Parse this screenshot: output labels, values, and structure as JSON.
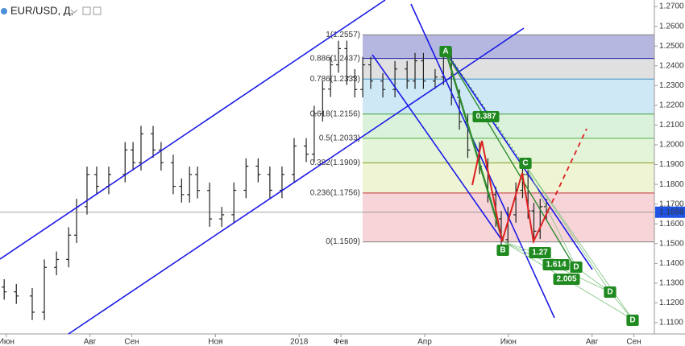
{
  "chart_data": {
    "type": "ohlc",
    "title": "EUR/USD, Д,",
    "xlim": [
      5.85,
      21.49
    ],
    "xticks": [
      {
        "value": 6,
        "label": "Июн"
      },
      {
        "value": 8,
        "label": "Авг"
      },
      {
        "value": 9,
        "label": "Сен"
      },
      {
        "value": 11,
        "label": "Ноя"
      },
      {
        "value": 13,
        "label": "2018"
      },
      {
        "value": 14,
        "label": "Фев"
      },
      {
        "value": 16,
        "label": "Апр"
      },
      {
        "value": 18,
        "label": "Июн"
      },
      {
        "value": 20,
        "label": "Авг"
      },
      {
        "value": 21,
        "label": "Сен"
      }
    ],
    "ylim": [
      1.1043,
      1.2733
    ],
    "yticks": [
      {
        "value": 1.27,
        "label": "1.2700"
      },
      {
        "value": 1.26,
        "label": "1.2600"
      },
      {
        "value": 1.25,
        "label": "1.2500"
      },
      {
        "value": 1.24,
        "label": "1.2400"
      },
      {
        "value": 1.23,
        "label": "1.2300"
      },
      {
        "value": 1.22,
        "label": "1.2200"
      },
      {
        "value": 1.21,
        "label": "1.2100"
      },
      {
        "value": 1.2,
        "label": "1.2000"
      },
      {
        "value": 1.19,
        "label": "1.1900"
      },
      {
        "value": 1.18,
        "label": "1.1800"
      },
      {
        "value": 1.17,
        "label": "1.1700"
      },
      {
        "value": 1.16,
        "label": "1.1600"
      },
      {
        "value": 1.15,
        "label": "1.1500"
      },
      {
        "value": 1.14,
        "label": "1.1400"
      },
      {
        "value": 1.13,
        "label": "1.1300"
      },
      {
        "value": 1.12,
        "label": "1.1200"
      },
      {
        "value": 1.11,
        "label": "1.1100"
      }
    ],
    "color": "#222222",
    "x": [
      5.95,
      6.24,
      6.62,
      6.91,
      7.2,
      7.49,
      7.68,
      7.93,
      8.16,
      8.45,
      8.84,
      9.03,
      9.22,
      9.51,
      9.7,
      9.99,
      10.19,
      10.38,
      10.57,
      10.86,
      11.15,
      11.44,
      11.73,
      12.02,
      12.3,
      12.59,
      12.88,
      13.17,
      13.36,
      13.56,
      13.75,
      13.94,
      14.14,
      14.33,
      14.52,
      14.71,
      15.0,
      15.29,
      15.58,
      15.77,
      15.97,
      16.25,
      16.45,
      16.64,
      16.83,
      17.03,
      17.31,
      17.51,
      17.7,
      17.83,
      17.99,
      18.18,
      18.34,
      18.47,
      18.61,
      18.76,
      18.91
    ],
    "ohlc": [
      [
        1.128,
        1.132,
        1.1216,
        1.1256
      ],
      [
        1.1256,
        1.1296,
        1.1195,
        1.1235
      ],
      [
        1.1235,
        1.1275,
        1.1113,
        1.1153
      ],
      [
        1.1153,
        1.142,
        1.1113,
        1.138
      ],
      [
        1.138,
        1.146,
        1.134,
        1.142
      ],
      [
        1.142,
        1.1583,
        1.138,
        1.1543
      ],
      [
        1.1543,
        1.1727,
        1.1503,
        1.1687
      ],
      [
        1.1687,
        1.189,
        1.1647,
        1.185
      ],
      [
        1.185,
        1.189,
        1.175,
        1.179
      ],
      [
        1.179,
        1.189,
        1.175,
        1.185
      ],
      [
        1.185,
        1.2014,
        1.181,
        1.1974
      ],
      [
        1.1974,
        1.2014,
        1.187,
        1.191
      ],
      [
        1.191,
        1.2096,
        1.187,
        1.2056
      ],
      [
        1.2056,
        1.2096,
        1.1934,
        1.1974
      ],
      [
        1.1974,
        1.2014,
        1.187,
        1.191
      ],
      [
        1.191,
        1.195,
        1.175,
        1.179
      ],
      [
        1.179,
        1.183,
        1.1708,
        1.1748
      ],
      [
        1.1748,
        1.189,
        1.1708,
        1.185
      ],
      [
        1.185,
        1.189,
        1.1729,
        1.1769
      ],
      [
        1.1769,
        1.1809,
        1.1585,
        1.1625
      ],
      [
        1.1625,
        1.1686,
        1.1585,
        1.1646
      ],
      [
        1.1646,
        1.181,
        1.1606,
        1.177
      ],
      [
        1.177,
        1.1932,
        1.173,
        1.1892
      ],
      [
        1.1892,
        1.1932,
        1.181,
        1.185
      ],
      [
        1.185,
        1.189,
        1.173,
        1.177
      ],
      [
        1.177,
        1.189,
        1.173,
        1.185
      ],
      [
        1.185,
        1.2034,
        1.181,
        1.1994
      ],
      [
        1.1994,
        1.2034,
        1.1913,
        1.1953
      ],
      [
        1.1953,
        1.2198,
        1.1913,
        1.2158
      ],
      [
        1.2158,
        1.2322,
        1.2118,
        1.2282
      ],
      [
        1.2282,
        1.2445,
        1.2242,
        1.2405
      ],
      [
        1.2405,
        1.2527,
        1.2365,
        1.2487
      ],
      [
        1.2487,
        1.2527,
        1.2303,
        1.2343
      ],
      [
        1.2343,
        1.2383,
        1.224,
        1.228
      ],
      [
        1.228,
        1.2445,
        1.224,
        1.2405
      ],
      [
        1.2405,
        1.2445,
        1.2283,
        1.2323
      ],
      [
        1.2323,
        1.2363,
        1.224,
        1.228
      ],
      [
        1.228,
        1.2424,
        1.224,
        1.2384
      ],
      [
        1.2384,
        1.2424,
        1.2283,
        1.2323
      ],
      [
        1.2323,
        1.2465,
        1.2283,
        1.2425
      ],
      [
        1.2425,
        1.2465,
        1.2283,
        1.2323
      ],
      [
        1.2323,
        1.2383,
        1.2283,
        1.2343
      ],
      [
        1.2343,
        1.2486,
        1.2303,
        1.2446
      ],
      [
        1.2446,
        1.2486,
        1.22,
        1.224
      ],
      [
        1.224,
        1.228,
        1.2077,
        1.2117
      ],
      [
        1.2117,
        1.2157,
        1.1934,
        1.1974
      ],
      [
        1.1974,
        1.2014,
        1.1852,
        1.1892
      ],
      [
        1.1892,
        1.1932,
        1.1708,
        1.1748
      ],
      [
        1.1748,
        1.1788,
        1.1585,
        1.1625
      ],
      [
        1.1625,
        1.1665,
        1.148,
        1.152
      ],
      [
        1.152,
        1.1686,
        1.148,
        1.1646
      ],
      [
        1.1646,
        1.181,
        1.1606,
        1.177
      ],
      [
        1.177,
        1.189,
        1.173,
        1.185
      ],
      [
        1.185,
        1.189,
        1.1626,
        1.1666
      ],
      [
        1.1666,
        1.1706,
        1.1523,
        1.1563
      ],
      [
        1.1563,
        1.1727,
        1.1523,
        1.1687
      ],
      [
        1.1687,
        1.1727,
        1.1619,
        1.1659
      ]
    ],
    "last_price": 1.1659,
    "last_price_color": "#1e53e5",
    "fib_levels": [
      {
        "value": 1.2557,
        "label": "1(1.2557)",
        "color": "#808080",
        "fill": "#9d9fd6"
      },
      {
        "value": 1.2437,
        "label": "0.886(1.2437)",
        "color": "#1a1aa0",
        "fill": "#d6d6d6"
      },
      {
        "value": 1.2333,
        "label": "0.786(1.2333)",
        "color": "#3b8fc4",
        "fill": "#bfe0f2"
      },
      {
        "value": 1.2156,
        "label": "0.618(1.2156)",
        "color": "#3aa03a",
        "fill": "#cdeccd"
      },
      {
        "value": 1.2033,
        "label": "0.5(1.2033)",
        "color": "#4caf50",
        "fill": "#d9f0cc"
      },
      {
        "value": 1.1909,
        "label": "0.382(1.1909)",
        "color": "#8a9a20",
        "fill": "#e9f2c6"
      },
      {
        "value": 1.1756,
        "label": "0.236(1.1756)",
        "color": "#c0303a",
        "fill": "#f3c6ca"
      },
      {
        "value": 1.1509,
        "label": "0(1.1509)",
        "color": "#808080"
      }
    ],
    "annotations": {
      "points": [
        "A",
        "B",
        "C",
        "D",
        "D",
        "D"
      ],
      "ratios": [
        "0.387",
        "1.27",
        "1.614",
        "2.005"
      ]
    }
  }
}
